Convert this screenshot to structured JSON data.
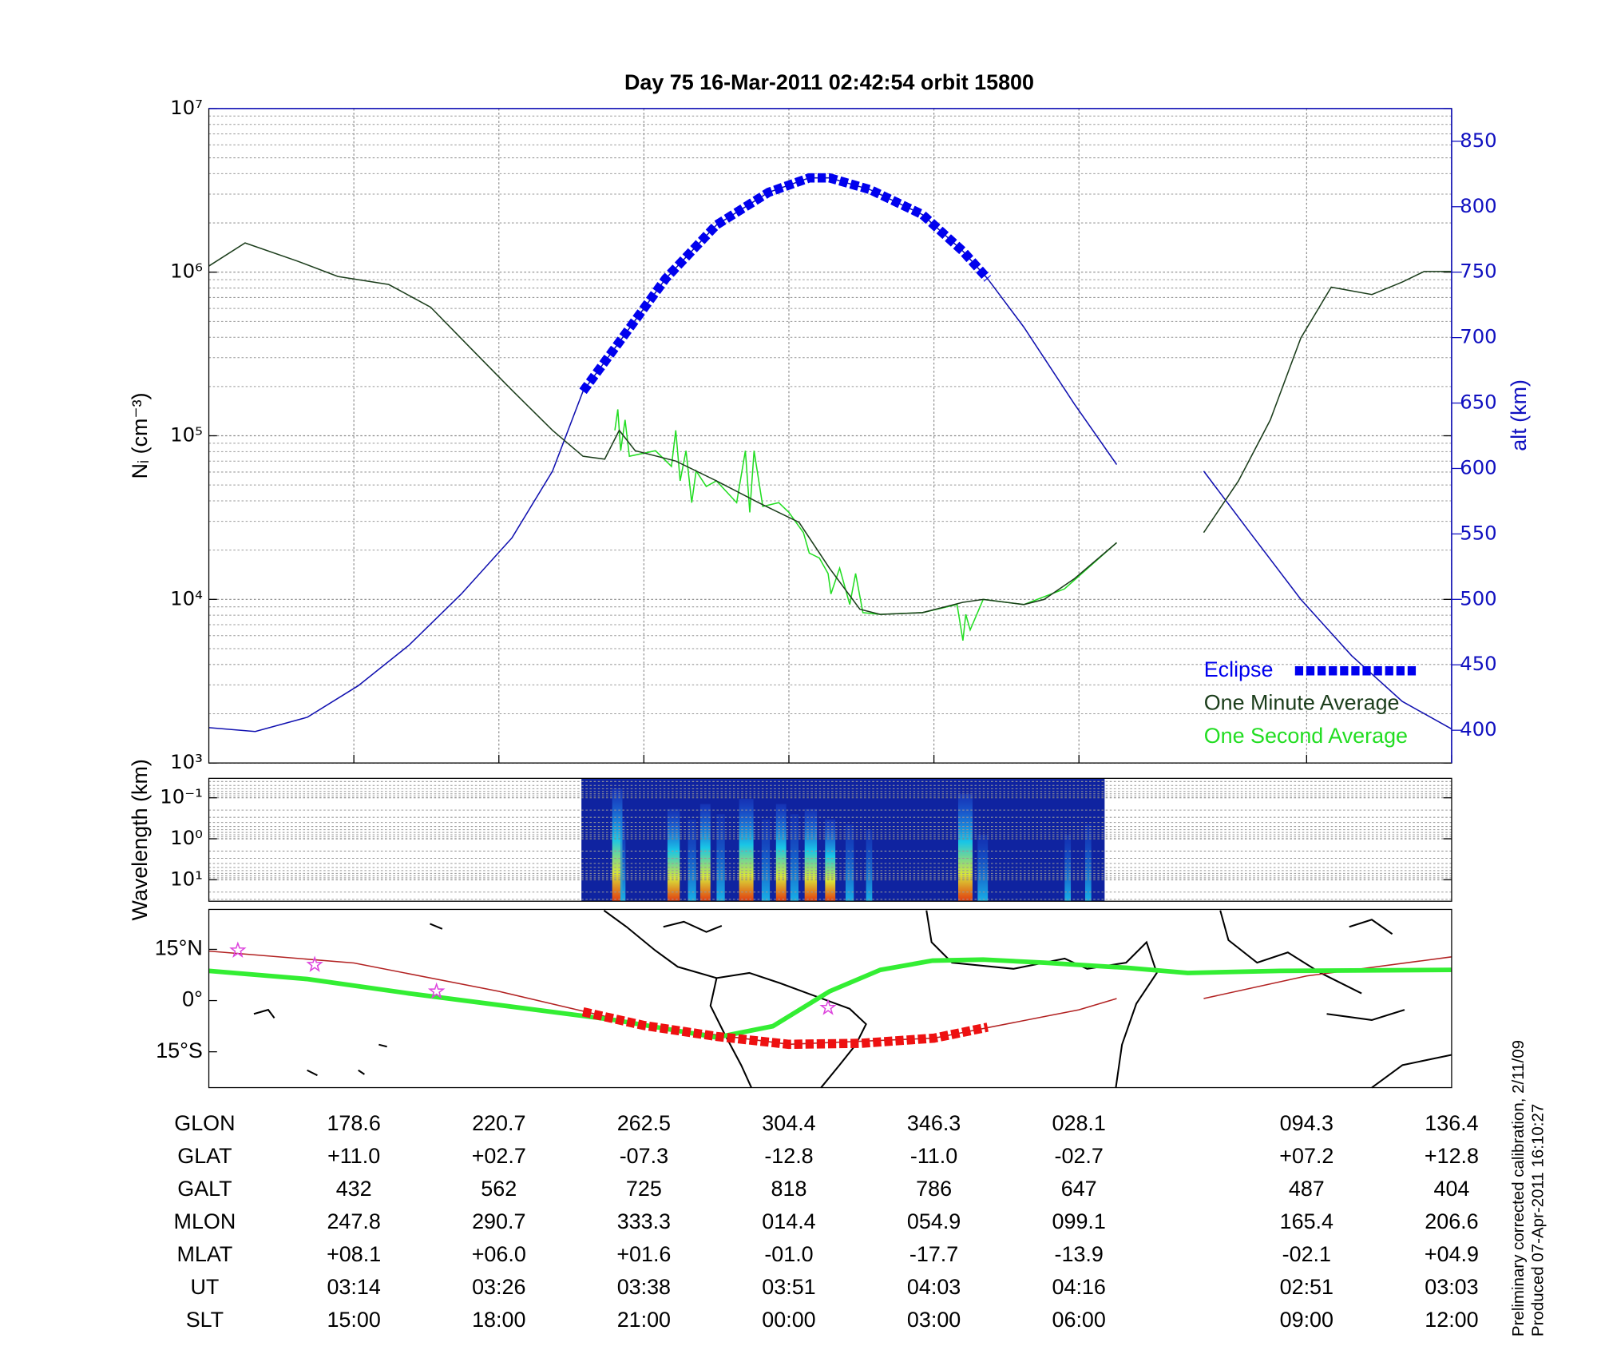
{
  "chart_data": [
    {
      "type": "line",
      "title": "Day 75  16-Mar-2011 02:42:54   orbit 15800",
      "ylabel": "Nᵢ (cm⁻³)",
      "y2label": "alt (km)",
      "xlim": [
        0,
        8.57
      ],
      "xticks": [
        1,
        2,
        3,
        4,
        5,
        6,
        7.57,
        8.57
      ],
      "ylim": [
        1000,
        10000000
      ],
      "ylog": true,
      "yticks": [
        {
          "value": 1000,
          "label": "10³"
        },
        {
          "value": 10000,
          "label": "10⁴"
        },
        {
          "value": 100000,
          "label": "10⁵"
        },
        {
          "value": 1000000,
          "label": "10⁶"
        },
        {
          "value": 10000000,
          "label": "10⁷"
        }
      ],
      "y2lim": [
        375,
        875
      ],
      "y2ticks": [
        400,
        450,
        500,
        550,
        600,
        650,
        700,
        750,
        800,
        850
      ],
      "grid": true,
      "legend": "lower right",
      "series": [
        {
          "color": "#1010b0",
          "axis": "y2",
          "x": [
            0,
            0.32,
            0.68,
            1.03,
            1.38,
            1.74,
            2.09,
            2.37,
            2.58,
            2.8,
            3.15,
            3.5,
            3.86,
            4.14,
            4.28,
            4.56,
            4.92,
            5.2,
            5.37,
            5.62,
            5.97,
            6.26,
            6.5,
            6.86,
            7.18,
            7.53,
            7.88,
            8.23,
            8.57
          ],
          "values": [
            402,
            399,
            410,
            434,
            465,
            504,
            547,
            598,
            659,
            692,
            745,
            786,
            811,
            822,
            822,
            813,
            794,
            766,
            745,
            708,
            649,
            603,
            null,
            598,
            551,
            500,
            457,
            422,
            401
          ]
        },
        {
          "name": "One Second Average",
          "color": "#22dd22",
          "x": [
            2.8,
            2.82,
            2.84,
            2.87,
            2.9,
            3.08,
            3.19,
            3.22,
            3.25,
            3.29,
            3.33,
            3.36,
            3.43,
            3.5,
            3.64,
            3.7,
            3.73,
            3.76,
            3.82,
            3.93,
            4.0,
            4.1,
            4.14,
            4.21,
            4.27,
            4.29,
            4.35,
            4.42,
            4.46,
            4.51,
            4.63,
            4.92,
            5.16,
            5.2,
            5.22,
            5.25,
            5.34,
            5.62,
            5.9,
            6.26
          ],
          "values": [
            108000,
            145000,
            81000,
            125000,
            75000,
            81000,
            65000,
            108000,
            53000,
            81000,
            39000,
            61000,
            49000,
            53000,
            39000,
            81000,
            34000,
            81000,
            37000,
            39000,
            34000,
            25600,
            19200,
            17900,
            14400,
            10800,
            15500,
            9300,
            14400,
            8300,
            8100,
            8300,
            9300,
            5600,
            8100,
            6500,
            10000,
            9300,
            11600,
            22200
          ]
        },
        {
          "name": "One Minute Average",
          "color": "#1b3d1b",
          "x": [
            0,
            0.25,
            0.61,
            0.89,
            1.24,
            1.53,
            1.81,
            2.09,
            2.37,
            2.58,
            2.73,
            2.83,
            2.94,
            3.22,
            3.5,
            3.79,
            4.07,
            4.28,
            4.49,
            4.63,
            4.92,
            5.2,
            5.34,
            5.62,
            5.76,
            5.97,
            6.26,
            6.5,
            6.86,
            7.1,
            7.32,
            7.53,
            7.74,
            8.02,
            8.23,
            8.38,
            8.57
          ],
          "values": [
            1090000,
            1510000,
            1170000,
            940000,
            840000,
            610000,
            340000,
            190000,
            108000,
            75000,
            72000,
            108000,
            81000,
            70000,
            53000,
            39000,
            29600,
            15500,
            8700,
            8100,
            8300,
            9600,
            10000,
            9300,
            10000,
            13400,
            22200,
            null,
            25600,
            53000,
            125000,
            396000,
            810000,
            730000,
            870000,
            1010000,
            1010000
          ]
        },
        {
          "name": "Eclipse",
          "color": "#0000ee",
          "axis": "y2",
          "linestyle": "squares",
          "x": [
            2.58,
            2.8,
            3.15,
            3.5,
            3.86,
            4.14,
            4.28,
            4.56,
            4.92,
            5.2,
            5.37
          ],
          "values": [
            659,
            692,
            745,
            786,
            811,
            822,
            822,
            813,
            794,
            766,
            745
          ]
        }
      ]
    },
    {
      "type": "spectrogram",
      "ylabel": "Wavelength (km)",
      "ylim": [
        0.0335,
        33.5
      ],
      "ylog": true,
      "yreverse": true,
      "yticks": [
        {
          "value": 0.1,
          "label": "10⁻¹"
        },
        {
          "value": 1,
          "label": "10⁰"
        },
        {
          "value": 10,
          "label": "10¹"
        }
      ]
    },
    {
      "type": "map",
      "xlim": [
        0,
        8.57
      ],
      "ylim": [
        -25.5,
        26.7
      ],
      "yticks": [
        {
          "value": 15,
          "label": "15°N"
        },
        {
          "value": 0,
          "label": "0°"
        },
        {
          "value": -15,
          "label": "15°S"
        }
      ],
      "series": [
        {
          "color": "#b22222",
          "x": [
            0,
            1,
            2,
            3,
            4,
            5,
            6,
            6.26,
            6.5,
            6.86,
            7.57,
            8.57
          ],
          "values": [
            14.5,
            11.0,
            2.7,
            -7.3,
            -12.8,
            -11.0,
            -2.7,
            0.6,
            null,
            0.6,
            7.2,
            12.8
          ]
        },
        {
          "color": "#33ee33",
          "linestyle": "thick",
          "x": [
            0,
            0.68,
            1.38,
            2.09,
            2.8,
            3.5,
            3.89,
            4.28,
            4.63,
            4.99,
            5.34,
            5.76,
            6.33,
            6.75,
            7.39,
            8.57
          ],
          "values": [
            8.7,
            6.3,
            2.1,
            -1.8,
            -5.7,
            -10.8,
            -7.5,
            2.7,
            9.0,
            11.7,
            12.0,
            11.1,
            9.6,
            8.1,
            8.7,
            9.0
          ]
        },
        {
          "color": "#ee1111",
          "linestyle": "squares",
          "x": [
            2.58,
            3.0,
            3.5,
            4.0,
            4.5,
            5.0,
            5.37
          ],
          "values": [
            -3.3,
            -7.3,
            -10.5,
            -12.8,
            -12.5,
            -11.0,
            -7.8
          ]
        },
        {
          "color": "#dd44dd",
          "marker": "star",
          "x": [
            0.2,
            0.73,
            1.57,
            4.27
          ],
          "values": [
            14.7,
            10.5,
            2.7,
            -2.1
          ]
        }
      ]
    }
  ],
  "table": {
    "rows": [
      {
        "label": "GLON",
        "values": [
          "178.6",
          "220.7",
          "262.5",
          "304.4",
          "346.3",
          "028.1",
          "094.3",
          "136.4"
        ]
      },
      {
        "label": "GLAT",
        "values": [
          "+11.0",
          "+02.7",
          "-07.3",
          "-12.8",
          "-11.0",
          "-02.7",
          "+07.2",
          "+12.8"
        ]
      },
      {
        "label": "GALT",
        "values": [
          "432",
          "562",
          "725",
          "818",
          "786",
          "647",
          "487",
          "404"
        ]
      },
      {
        "label": "MLON",
        "values": [
          "247.8",
          "290.7",
          "333.3",
          "014.4",
          "054.9",
          "099.1",
          "165.4",
          "206.6"
        ]
      },
      {
        "label": "MLAT",
        "values": [
          "+08.1",
          "+06.0",
          "+01.6",
          "-01.0",
          "-17.7",
          "-13.9",
          "-02.1",
          "+04.9"
        ]
      },
      {
        "label": "UT",
        "values": [
          "03:14",
          "03:26",
          "03:38",
          "03:51",
          "04:03",
          "04:16",
          "02:51",
          "03:03"
        ]
      },
      {
        "label": "SLT",
        "values": [
          "15:00",
          "18:00",
          "21:00",
          "00:00",
          "03:00",
          "06:00",
          "09:00",
          "12:00"
        ]
      }
    ]
  },
  "notes": [
    "Preliminary corrected calibration, 2/11/09",
    "Produced 07-Apr-2011 16:10:27"
  ]
}
